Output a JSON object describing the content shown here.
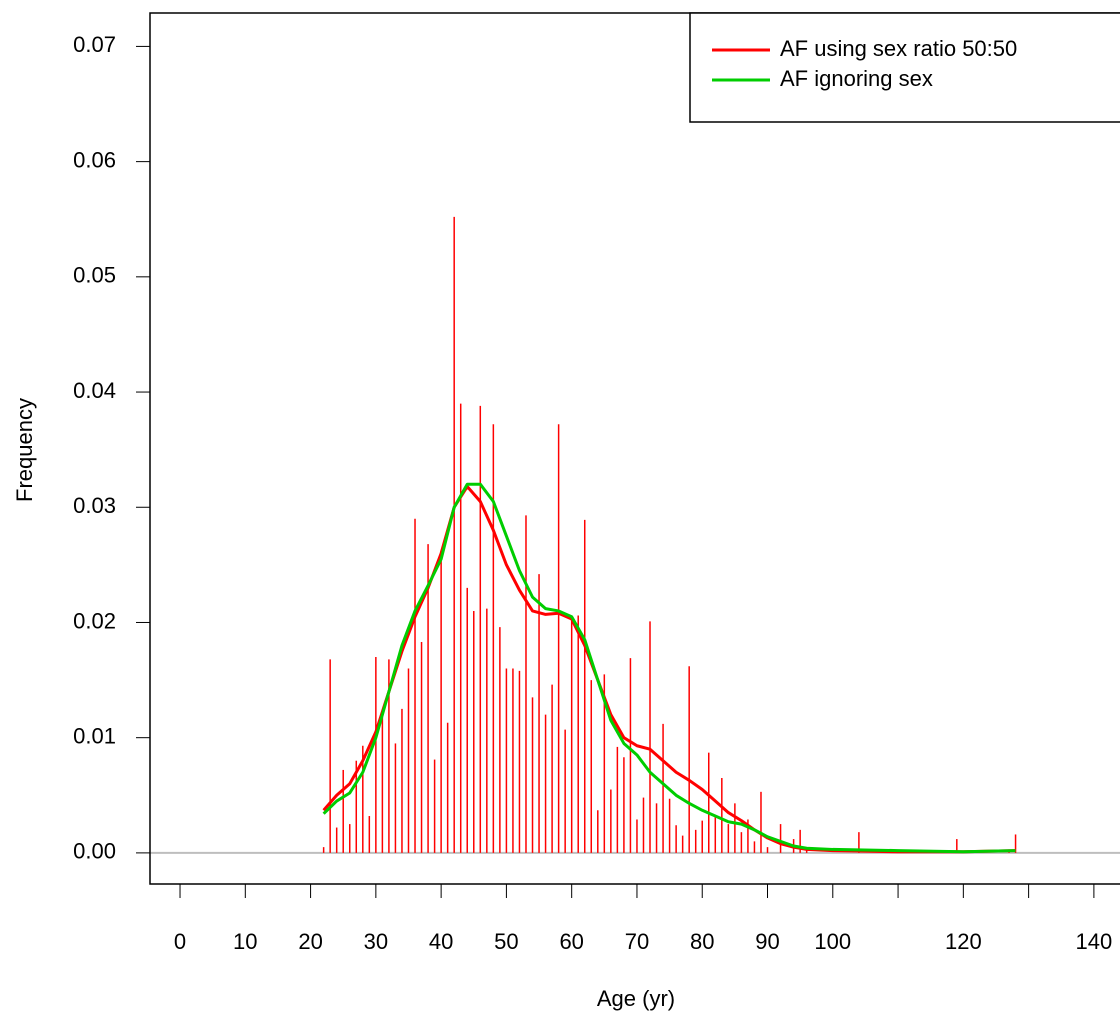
{
  "chart_data": {
    "type": "line",
    "xlabel": "Age (yr)",
    "ylabel": "Frequency",
    "xlim": [
      -4.6,
      144
    ],
    "ylim": [
      -0.0027,
      0.0729
    ],
    "xticks": [
      0,
      10,
      20,
      30,
      40,
      50,
      60,
      70,
      80,
      90,
      100,
      120,
      140
    ],
    "xticks_unlabeled": [
      110,
      130
    ],
    "yticks": [
      {
        "value": 0,
        "label": "0.00"
      },
      0.01,
      0.02,
      0.03,
      0.04,
      0.05,
      0.06,
      0.07
    ],
    "hline": 0,
    "hline_color": "#bebebe",
    "legend": "top-right",
    "spikes": {
      "color": "#ff0000",
      "x": [
        22,
        23,
        24,
        25,
        26,
        27,
        28,
        29,
        30,
        31,
        32,
        33,
        34,
        35,
        36,
        37,
        38,
        39,
        40,
        41,
        42,
        43,
        44,
        45,
        46,
        47,
        48,
        49,
        50,
        51,
        52,
        53,
        54,
        55,
        56,
        57,
        58,
        59,
        60,
        61,
        62,
        63,
        64,
        65,
        66,
        67,
        68,
        69,
        70,
        71,
        72,
        73,
        74,
        75,
        76,
        77,
        78,
        79,
        80,
        81,
        82,
        83,
        84,
        85,
        86,
        87,
        88,
        89,
        90,
        92,
        94,
        95,
        96,
        104,
        119,
        127,
        128
      ],
      "values": [
        0.0005,
        0.0168,
        0.0022,
        0.0072,
        0.0025,
        0.008,
        0.0093,
        0.0032,
        0.017,
        0.0118,
        0.0168,
        0.0095,
        0.0125,
        0.016,
        0.029,
        0.0183,
        0.0268,
        0.0081,
        0.0257,
        0.0113,
        0.0552,
        0.039,
        0.023,
        0.021,
        0.0388,
        0.0212,
        0.0372,
        0.0196,
        0.016,
        0.016,
        0.0158,
        0.0293,
        0.0135,
        0.0242,
        0.012,
        0.0146,
        0.0372,
        0.0107,
        0.0202,
        0.0206,
        0.0289,
        0.015,
        0.0037,
        0.0155,
        0.0055,
        0.0092,
        0.0083,
        0.0169,
        0.0029,
        0.0048,
        0.0201,
        0.0043,
        0.0112,
        0.0047,
        0.0024,
        0.0015,
        0.0162,
        0.002,
        0.0028,
        0.0087,
        0.0033,
        0.0065,
        0.0025,
        0.0043,
        0.0018,
        0.0029,
        0.001,
        0.0053,
        0.0005,
        0.0025,
        0.0012,
        0.002,
        0.0004,
        0.0018,
        0.0012,
        0.0003,
        0.0016
      ]
    },
    "x": [
      22,
      24,
      26,
      28,
      30,
      32,
      34,
      36,
      38,
      40,
      42,
      44,
      46,
      48,
      50,
      52,
      54,
      56,
      58,
      60,
      62,
      64,
      66,
      68,
      70,
      72,
      74,
      76,
      78,
      80,
      82,
      84,
      86,
      88,
      90,
      92,
      94,
      96,
      100,
      110,
      120,
      128
    ],
    "series": [
      {
        "name": "AF using sex ratio 50:50",
        "color": "#ff0000",
        "values": [
          0.0037,
          0.005,
          0.006,
          0.008,
          0.0105,
          0.014,
          0.0175,
          0.0205,
          0.023,
          0.026,
          0.03,
          0.0318,
          0.0305,
          0.028,
          0.025,
          0.0228,
          0.021,
          0.0207,
          0.0208,
          0.0203,
          0.018,
          0.015,
          0.012,
          0.01,
          0.0093,
          0.009,
          0.008,
          0.007,
          0.0063,
          0.0055,
          0.0045,
          0.0035,
          0.0028,
          0.002,
          0.0013,
          0.0008,
          0.0005,
          0.0003,
          0.0002,
          0.0001,
          0.0001,
          0.0002
        ]
      },
      {
        "name": "AF ignoring sex",
        "color": "#00cd00",
        "values": [
          0.0034,
          0.0045,
          0.0052,
          0.007,
          0.01,
          0.014,
          0.018,
          0.021,
          0.0232,
          0.0255,
          0.03,
          0.032,
          0.032,
          0.0305,
          0.0275,
          0.0245,
          0.0222,
          0.0212,
          0.021,
          0.0205,
          0.0185,
          0.015,
          0.0115,
          0.0095,
          0.0085,
          0.007,
          0.006,
          0.005,
          0.0043,
          0.0037,
          0.0032,
          0.0027,
          0.0025,
          0.002,
          0.0014,
          0.001,
          0.0006,
          0.0004,
          0.0003,
          0.0002,
          0.0001,
          0.0002
        ]
      }
    ]
  }
}
